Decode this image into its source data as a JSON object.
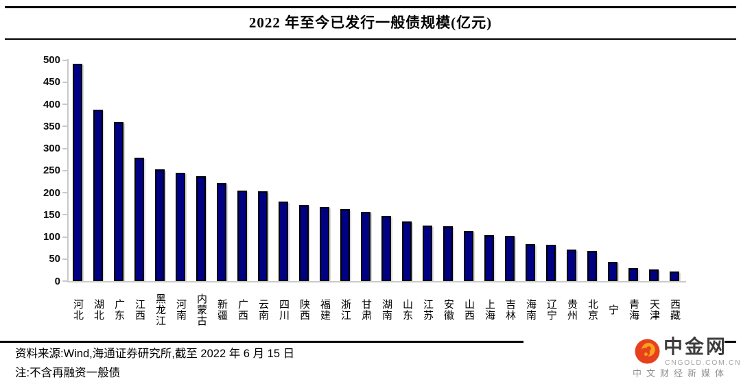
{
  "title": "2022 年至今已发行一般债规模(亿元)",
  "source_line": "资料来源:Wind,海通证券研究所,截至 2022 年 6 月 15 日",
  "note_line": "注:不含再融资一般债",
  "logo": {
    "name": "中金网",
    "domain": "CNGOLD.COM.CN",
    "tagline": "中文财经新媒体",
    "icon_color_red": "#e6401c",
    "icon_color_gold": "#f7a21b"
  },
  "colors": {
    "bar_fill": "#000082",
    "bar_border": "#000000",
    "axis_line": "#c9c9c9",
    "text": "#000000"
  },
  "chart_data": {
    "type": "bar",
    "title": "2022 年至今已发行一般债规模(亿元)",
    "categories": [
      "河北",
      "湖北",
      "广东",
      "江西",
      "黑龙江",
      "河南",
      "内蒙古",
      "新疆",
      "广西",
      "云南",
      "四川",
      "陕西",
      "福建",
      "浙江",
      "甘肃",
      "湖南",
      "山东",
      "江苏",
      "安徽",
      "山西",
      "上海",
      "吉林",
      "海南",
      "辽宁",
      "贵州",
      "北京",
      "宁",
      "青海",
      "天津",
      "西藏"
    ],
    "values": [
      491,
      388,
      360,
      279,
      252,
      245,
      237,
      221,
      205,
      203,
      180,
      172,
      167,
      163,
      156,
      148,
      135,
      126,
      124,
      113,
      104,
      102,
      84,
      82,
      71,
      68,
      44,
      30,
      27,
      21
    ],
    "xlabel": "",
    "ylabel": "",
    "ylim": [
      0,
      500
    ],
    "ytick_step": 50,
    "grid": false,
    "legend": false,
    "bar_color": "#000082"
  }
}
